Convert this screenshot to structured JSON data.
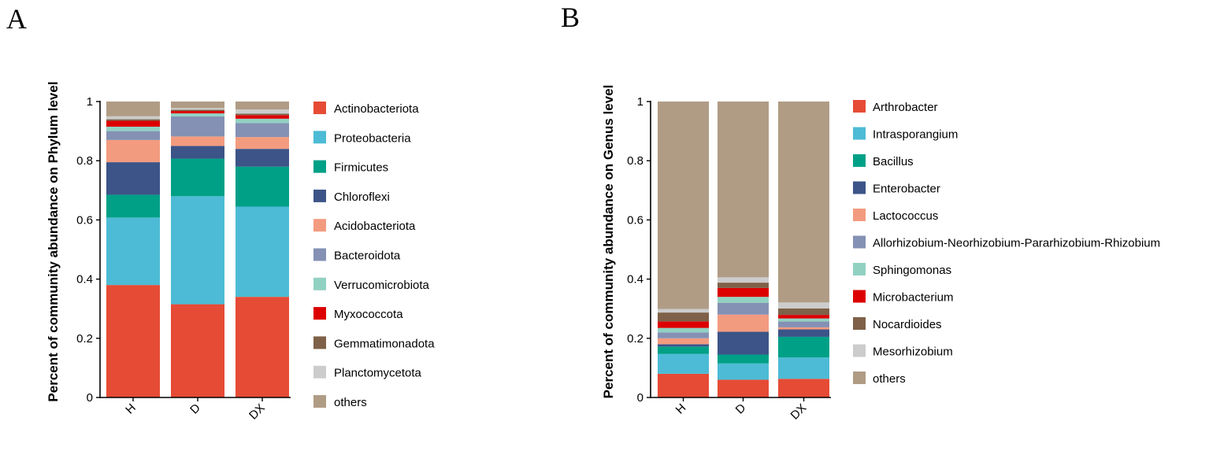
{
  "chart_data": [
    {
      "type": "bar",
      "stacked": true,
      "panel_label": "A",
      "title": "",
      "xlabel": "",
      "ylabel": "Percent of community abundance on Phylum level",
      "ylim": [
        0,
        1
      ],
      "yticks": [
        "0",
        "0.2",
        "0.4",
        "0.6",
        "0.8",
        "1"
      ],
      "categories": [
        "H",
        "D",
        "DX"
      ],
      "series": [
        {
          "name": "Actinobacteriota",
          "color": "#e64b35",
          "values": [
            0.38,
            0.315,
            0.34
          ]
        },
        {
          "name": "Proteobacteria",
          "color": "#4dbbd5",
          "values": [
            0.228,
            0.365,
            0.305
          ]
        },
        {
          "name": "Firmicutes",
          "color": "#00a087",
          "values": [
            0.077,
            0.127,
            0.135
          ]
        },
        {
          "name": "Chloroflexi",
          "color": "#3c5488",
          "values": [
            0.11,
            0.043,
            0.06
          ]
        },
        {
          "name": "Acidobacteriota",
          "color": "#f39b7f",
          "values": [
            0.075,
            0.032,
            0.04
          ]
        },
        {
          "name": "Bacteroidota",
          "color": "#8491b4",
          "values": [
            0.03,
            0.068,
            0.047
          ]
        },
        {
          "name": "Verrucomicrobiota",
          "color": "#91d1c2",
          "values": [
            0.015,
            0.01,
            0.015
          ]
        },
        {
          "name": "Myxococcota",
          "color": "#dc0000",
          "values": [
            0.02,
            0.008,
            0.012
          ]
        },
        {
          "name": "Gemmatimonadota",
          "color": "#7e6148",
          "values": [
            0.005,
            0.004,
            0.005
          ]
        },
        {
          "name": "Planctomycetota",
          "color": "#cccccc",
          "values": [
            0.01,
            0.006,
            0.014
          ]
        },
        {
          "name": "others",
          "color": "#b09c85",
          "values": [
            0.05,
            0.022,
            0.027
          ]
        }
      ]
    },
    {
      "type": "bar",
      "stacked": true,
      "panel_label": "B",
      "title": "",
      "xlabel": "",
      "ylabel": "Percent of community abundance on Genus level",
      "ylim": [
        0,
        1
      ],
      "yticks": [
        "0",
        "0.2",
        "0.4",
        "0.6",
        "0.8",
        "1"
      ],
      "categories": [
        "H",
        "D",
        "DX"
      ],
      "series": [
        {
          "name": "Arthrobacter",
          "color": "#e64b35",
          "values": [
            0.08,
            0.06,
            0.063
          ]
        },
        {
          "name": "Intrasporangium",
          "color": "#4dbbd5",
          "values": [
            0.067,
            0.055,
            0.072
          ]
        },
        {
          "name": "Bacillus",
          "color": "#00a087",
          "values": [
            0.025,
            0.03,
            0.07
          ]
        },
        {
          "name": "Enterobacter",
          "color": "#3c5488",
          "values": [
            0.008,
            0.077,
            0.025
          ]
        },
        {
          "name": "Lactococcus",
          "color": "#f39b7f",
          "values": [
            0.02,
            0.058,
            0.007
          ]
        },
        {
          "name": "Allorhizobium-Neorhizobium-Pararhizobium-Rhizobium",
          "color": "#8491b4",
          "values": [
            0.02,
            0.04,
            0.02
          ]
        },
        {
          "name": "Sphingomonas",
          "color": "#91d1c2",
          "values": [
            0.015,
            0.02,
            0.01
          ]
        },
        {
          "name": "Microbacterium",
          "color": "#dc0000",
          "values": [
            0.022,
            0.03,
            0.012
          ]
        },
        {
          "name": "Nocardioides",
          "color": "#7e6148",
          "values": [
            0.03,
            0.018,
            0.022
          ]
        },
        {
          "name": "Mesorhizobium",
          "color": "#cccccc",
          "values": [
            0.012,
            0.018,
            0.02
          ]
        },
        {
          "name": "others",
          "color": "#b09c85",
          "values": [
            0.701,
            0.594,
            0.679
          ]
        }
      ]
    }
  ]
}
